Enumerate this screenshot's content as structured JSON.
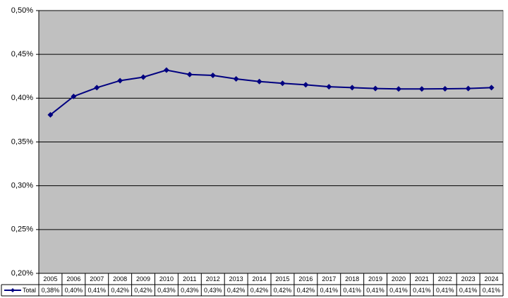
{
  "chart_data": {
    "type": "line",
    "categories": [
      "2005",
      "2006",
      "2007",
      "2008",
      "2009",
      "2010",
      "2011",
      "2012",
      "2013",
      "2014",
      "2015",
      "2016",
      "2017",
      "2018",
      "2019",
      "2020",
      "2021",
      "2022",
      "2023",
      "2024"
    ],
    "series": [
      {
        "name": "Total",
        "color": "#000080",
        "values": [
          0.381,
          0.402,
          0.412,
          0.42,
          0.424,
          0.432,
          0.427,
          0.426,
          0.422,
          0.419,
          0.417,
          0.4152,
          0.413,
          0.412,
          0.411,
          0.4105,
          0.4105,
          0.4107,
          0.411,
          0.412
        ],
        "value_labels": [
          "0,38%",
          "0,40%",
          "0,41%",
          "0,42%",
          "0,42%",
          "0,43%",
          "0,43%",
          "0,43%",
          "0,42%",
          "0,42%",
          "0,42%",
          "0,42%",
          "0,41%",
          "0,41%",
          "0,41%",
          "0,41%",
          "0,41%",
          "0,41%",
          "0,41%",
          "0,41%"
        ]
      }
    ],
    "ylim": [
      0.2,
      0.5
    ],
    "yticks": [
      {
        "value": 0.2,
        "label": "0,20%"
      },
      {
        "value": 0.25,
        "label": "0,25%"
      },
      {
        "value": 0.3,
        "label": "0,30%"
      },
      {
        "value": 0.35,
        "label": "0,35%"
      },
      {
        "value": 0.4,
        "label": "0,40%"
      },
      {
        "value": 0.45,
        "label": "0,45%"
      },
      {
        "value": 0.5,
        "label": "0,50%"
      }
    ],
    "grid": true,
    "plot_background": "#c0c0c0"
  }
}
